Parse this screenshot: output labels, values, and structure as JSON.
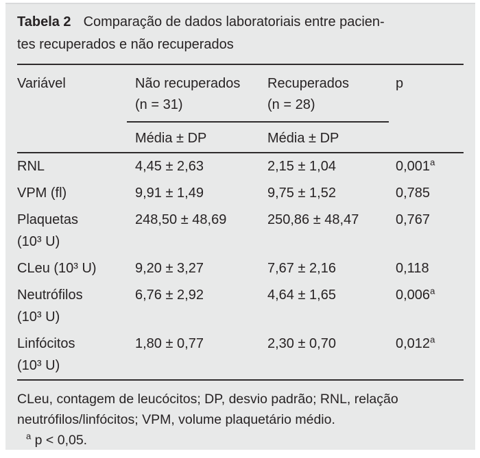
{
  "title": {
    "label": "Tabela 2",
    "text": "Comparação de dados laboratoriais entre pacien-\ntes recuperados e não recuperados"
  },
  "table": {
    "columns": {
      "variable": "Variável",
      "group1": "Não recuperados\n(n = 31)",
      "group2": "Recuperados\n(n = 28)",
      "p": "p"
    },
    "subheaders": {
      "group1": "Média ± DP",
      "group2": "Média ± DP"
    },
    "rows": [
      {
        "variable": "RNL",
        "group1": "4,45 ± 2,63",
        "group2": "2,15 ± 1,04",
        "p": "0,001",
        "p_sup": "a"
      },
      {
        "variable": "VPM (fl)",
        "group1": "9,91 ± 1,49",
        "group2": "9,75 ± 1,52",
        "p": "0,785",
        "p_sup": ""
      },
      {
        "variable": "Plaquetas\n(10³ U)",
        "group1": "248,50 ± 48,69",
        "group2": "250,86 ± 48,47",
        "p": "0,767",
        "p_sup": ""
      },
      {
        "variable": "CLeu (10³ U)",
        "group1": "9,20 ± 3,27",
        "group2": "7,67 ± 2,16",
        "p": "0,118",
        "p_sup": ""
      },
      {
        "variable": "Neutrófilos\n(10³ U)",
        "group1": "6,76 ± 2,92",
        "group2": "4,64 ± 1,65",
        "p": "0,006",
        "p_sup": "a"
      },
      {
        "variable": "Linfócitos\n(10³ U)",
        "group1": "1,80 ± 0,77",
        "group2": "2,30 ± 0,70",
        "p": "0,012",
        "p_sup": "a"
      }
    ]
  },
  "footnotes": {
    "abbreviations": "CLeu, contagem de leucócitos; DP, desvio padrão; RNL, relação neutrófilos/linfócitos; VPM, volume plaquetário médio.",
    "significance_sup": "a",
    "significance_text": " p < 0,05."
  },
  "colors": {
    "panel_background": "#e8e9e9",
    "rule": "#2e2b2c",
    "text": "#272324"
  }
}
